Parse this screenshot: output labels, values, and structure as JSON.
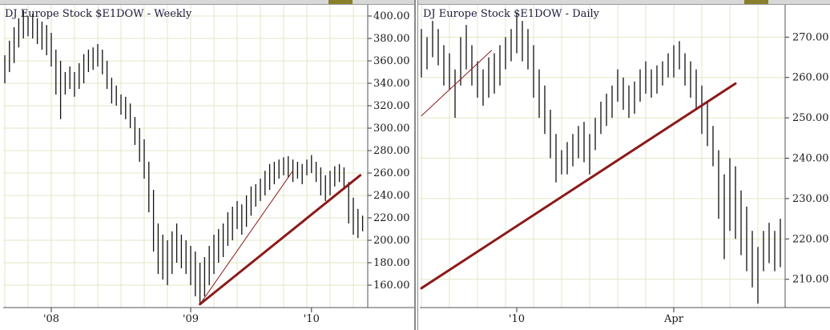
{
  "charts": {
    "left": {
      "title": "DJ Europe Stock  $E1DOW - Weekly"
    },
    "right": {
      "title": "DJ Europe Stock  $E1DOW - Daily"
    }
  },
  "colors": {
    "bars": "#111111",
    "trendline": "#8b1a1a",
    "grid": "#e6e6c8",
    "frame": "#555555"
  },
  "chart_data": [
    {
      "type": "ohlc",
      "title": "DJ Europe Stock  $E1DOW - Weekly",
      "ylim": [
        140,
        410
      ],
      "y_ticks": [
        "160.00",
        "180.00",
        "200.00",
        "220.00",
        "240.00",
        "260.00",
        "280.00",
        "300.00",
        "320.00",
        "340.00",
        "360.00",
        "380.00",
        "400.00"
      ],
      "x_ticks": [
        "'08",
        "'09",
        "'10"
      ],
      "x_tick_index": [
        10,
        40,
        66
      ],
      "grid": true,
      "series": [
        {
          "bars": [
            {
              "h": 365,
              "l": 340
            },
            {
              "h": 378,
              "l": 350
            },
            {
              "h": 390,
              "l": 358
            },
            {
              "h": 398,
              "l": 372
            },
            {
              "h": 405,
              "l": 380
            },
            {
              "h": 400,
              "l": 382
            },
            {
              "h": 402,
              "l": 380
            },
            {
              "h": 398,
              "l": 375
            },
            {
              "h": 395,
              "l": 370
            },
            {
              "h": 392,
              "l": 365
            },
            {
              "h": 385,
              "l": 355
            },
            {
              "h": 370,
              "l": 330
            },
            {
              "h": 360,
              "l": 308
            },
            {
              "h": 350,
              "l": 330
            },
            {
              "h": 355,
              "l": 335
            },
            {
              "h": 350,
              "l": 328
            },
            {
              "h": 358,
              "l": 335
            },
            {
              "h": 366,
              "l": 340
            },
            {
              "h": 370,
              "l": 350
            },
            {
              "h": 372,
              "l": 352
            },
            {
              "h": 375,
              "l": 355
            },
            {
              "h": 370,
              "l": 348
            },
            {
              "h": 360,
              "l": 335
            },
            {
              "h": 345,
              "l": 322
            },
            {
              "h": 338,
              "l": 320
            },
            {
              "h": 330,
              "l": 312
            },
            {
              "h": 328,
              "l": 308
            },
            {
              "h": 322,
              "l": 300
            },
            {
              "h": 310,
              "l": 285
            },
            {
              "h": 300,
              "l": 270
            },
            {
              "h": 290,
              "l": 255
            },
            {
              "h": 270,
              "l": 225
            },
            {
              "h": 245,
              "l": 190
            },
            {
              "h": 215,
              "l": 170
            },
            {
              "h": 205,
              "l": 165
            },
            {
              "h": 200,
              "l": 160
            },
            {
              "h": 208,
              "l": 170
            },
            {
              "h": 215,
              "l": 180
            },
            {
              "h": 205,
              "l": 175
            },
            {
              "h": 200,
              "l": 170
            },
            {
              "h": 195,
              "l": 160
            },
            {
              "h": 190,
              "l": 150
            },
            {
              "h": 180,
              "l": 143
            },
            {
              "h": 185,
              "l": 150
            },
            {
              "h": 195,
              "l": 160
            },
            {
              "h": 205,
              "l": 170
            },
            {
              "h": 210,
              "l": 180
            },
            {
              "h": 215,
              "l": 185
            },
            {
              "h": 225,
              "l": 195
            },
            {
              "h": 230,
              "l": 200
            },
            {
              "h": 235,
              "l": 210
            },
            {
              "h": 232,
              "l": 205
            },
            {
              "h": 240,
              "l": 212
            },
            {
              "h": 248,
              "l": 222
            },
            {
              "h": 250,
              "l": 230
            },
            {
              "h": 255,
              "l": 235
            },
            {
              "h": 262,
              "l": 240
            },
            {
              "h": 268,
              "l": 245
            },
            {
              "h": 270,
              "l": 250
            },
            {
              "h": 272,
              "l": 255
            },
            {
              "h": 274,
              "l": 258
            },
            {
              "h": 275,
              "l": 256
            },
            {
              "h": 272,
              "l": 252
            },
            {
              "h": 270,
              "l": 255
            },
            {
              "h": 268,
              "l": 250
            },
            {
              "h": 272,
              "l": 258
            },
            {
              "h": 276,
              "l": 260
            },
            {
              "h": 270,
              "l": 252
            },
            {
              "h": 265,
              "l": 240
            },
            {
              "h": 258,
              "l": 235
            },
            {
              "h": 262,
              "l": 240
            },
            {
              "h": 266,
              "l": 248
            },
            {
              "h": 268,
              "l": 252
            },
            {
              "h": 265,
              "l": 245
            },
            {
              "h": 252,
              "l": 215
            },
            {
              "h": 238,
              "l": 205
            },
            {
              "h": 228,
              "l": 202
            },
            {
              "h": 222,
              "l": 208
            }
          ]
        }
      ],
      "trendlines": [
        {
          "from": {
            "i": 42,
            "v": 143
          },
          "to": {
            "i": 76.5,
            "v": 258
          },
          "width": 3
        },
        {
          "from": {
            "i": 42,
            "v": 143
          },
          "to": {
            "i": 62,
            "v": 262
          },
          "width": 1
        }
      ]
    },
    {
      "type": "ohlc",
      "title": "DJ Europe Stock  $E1DOW - Daily",
      "ylim": [
        203,
        278
      ],
      "y_ticks": [
        "210.00",
        "220.00",
        "230.00",
        "240.00",
        "250.00",
        "260.00",
        "270.00"
      ],
      "x_ticks": [
        "'10",
        "Apr"
      ],
      "x_tick_index": [
        17,
        45
      ],
      "grid": true,
      "series": [
        {
          "bars": [
            {
              "h": 272,
              "l": 260
            },
            {
              "h": 270,
              "l": 262
            },
            {
              "h": 274,
              "l": 265
            },
            {
              "h": 272,
              "l": 263
            },
            {
              "h": 268,
              "l": 258
            },
            {
              "h": 266,
              "l": 257
            },
            {
              "h": 262,
              "l": 250
            },
            {
              "h": 270,
              "l": 258
            },
            {
              "h": 273,
              "l": 262
            },
            {
              "h": 268,
              "l": 258
            },
            {
              "h": 264,
              "l": 255
            },
            {
              "h": 262,
              "l": 253
            },
            {
              "h": 265,
              "l": 255
            },
            {
              "h": 266,
              "l": 256
            },
            {
              "h": 268,
              "l": 258
            },
            {
              "h": 270,
              "l": 262
            },
            {
              "h": 272,
              "l": 264
            },
            {
              "h": 276,
              "l": 266
            },
            {
              "h": 274,
              "l": 264
            },
            {
              "h": 272,
              "l": 262
            },
            {
              "h": 268,
              "l": 255
            },
            {
              "h": 262,
              "l": 250
            },
            {
              "h": 258,
              "l": 246
            },
            {
              "h": 252,
              "l": 240
            },
            {
              "h": 246,
              "l": 234
            },
            {
              "h": 242,
              "l": 236
            },
            {
              "h": 244,
              "l": 236
            },
            {
              "h": 246,
              "l": 238
            },
            {
              "h": 248,
              "l": 240
            },
            {
              "h": 249,
              "l": 239
            },
            {
              "h": 246,
              "l": 236
            },
            {
              "h": 250,
              "l": 242
            },
            {
              "h": 254,
              "l": 246
            },
            {
              "h": 256,
              "l": 248
            },
            {
              "h": 258,
              "l": 250
            },
            {
              "h": 262,
              "l": 254
            },
            {
              "h": 260,
              "l": 252
            },
            {
              "h": 258,
              "l": 250
            },
            {
              "h": 259,
              "l": 251
            },
            {
              "h": 262,
              "l": 254
            },
            {
              "h": 264,
              "l": 256
            },
            {
              "h": 262,
              "l": 255
            },
            {
              "h": 263,
              "l": 256
            },
            {
              "h": 264,
              "l": 258
            },
            {
              "h": 266,
              "l": 260
            },
            {
              "h": 268,
              "l": 260
            },
            {
              "h": 269,
              "l": 262
            },
            {
              "h": 266,
              "l": 258
            },
            {
              "h": 264,
              "l": 255
            },
            {
              "h": 262,
              "l": 252
            },
            {
              "h": 258,
              "l": 246
            },
            {
              "h": 254,
              "l": 243
            },
            {
              "h": 248,
              "l": 238
            },
            {
              "h": 242,
              "l": 225
            },
            {
              "h": 236,
              "l": 215
            },
            {
              "h": 240,
              "l": 222
            },
            {
              "h": 238,
              "l": 220
            },
            {
              "h": 232,
              "l": 216
            },
            {
              "h": 228,
              "l": 212
            },
            {
              "h": 222,
              "l": 208
            },
            {
              "h": 218,
              "l": 204
            },
            {
              "h": 222,
              "l": 212
            },
            {
              "h": 224,
              "l": 214
            },
            {
              "h": 222,
              "l": 212
            },
            {
              "h": 225,
              "l": 213
            }
          ]
        }
      ],
      "trendlines": [
        {
          "from": {
            "i": 0,
            "v": 207.8
          },
          "to": {
            "i": 56,
            "v": 258.5
          },
          "width": 3
        },
        {
          "from": {
            "i": 0,
            "v": 250.5
          },
          "to": {
            "i": 12.5,
            "v": 266.7
          },
          "width": 1
        }
      ]
    }
  ]
}
